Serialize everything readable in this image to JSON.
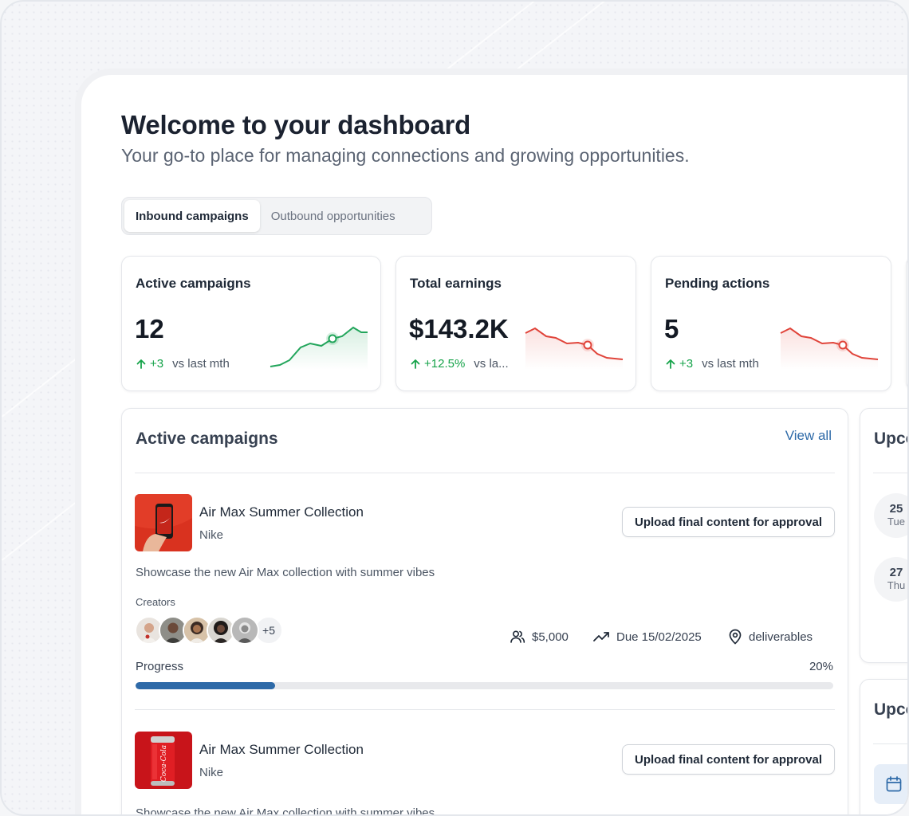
{
  "header": {
    "title": "Welcome to your dashboard",
    "subtitle": "Your go-to place for managing connections and growing opportunities."
  },
  "tabs": [
    {
      "label": "Inbound campaigns",
      "active": true
    },
    {
      "label": "Outbound opportunities",
      "active": false
    }
  ],
  "stats": [
    {
      "label": "Active campaigns",
      "value": "12",
      "delta": "+3",
      "vs": "vs last mth",
      "trend": "up",
      "color": "#22a55b"
    },
    {
      "label": "Total earnings",
      "value": "$143.2K",
      "delta": "+12.5%",
      "vs": "vs la...",
      "trend": "down",
      "color": "#e0443a"
    },
    {
      "label": "Pending actions",
      "value": "5",
      "delta": "+3",
      "vs": "vs last mth",
      "trend": "down",
      "color": "#e0443a"
    }
  ],
  "campaigns": {
    "heading": "Active campaigns",
    "view_all": "View all",
    "items": [
      {
        "title": "Air Max Summer Collection",
        "brand": "Nike",
        "action": "Upload final content for approval",
        "description": "Showcase the new Air Max collection with summer vibes",
        "creators_label": "Creators",
        "more_creators": "+5",
        "budget": "$5,000",
        "due": "Due 15/02/2025",
        "location": "deliverables",
        "progress_label": "Progress",
        "progress_text": "20%",
        "progress": 0.2
      },
      {
        "title": "Air Max Summer Collection",
        "brand": "Nike",
        "action": "Upload final content for approval",
        "description": "Showcase the new Air Max collection with summer vibes"
      }
    ]
  },
  "upcoming": {
    "heading": "Upcoming",
    "dates": [
      {
        "day": "25",
        "weekday": "Tue"
      },
      {
        "day": "27",
        "weekday": "Thu"
      }
    ]
  },
  "upcoming2": {
    "heading": "Upcoming"
  },
  "colors": {
    "accent": "#2e6aa8",
    "positive": "#16a34a",
    "negative": "#e0443a"
  }
}
